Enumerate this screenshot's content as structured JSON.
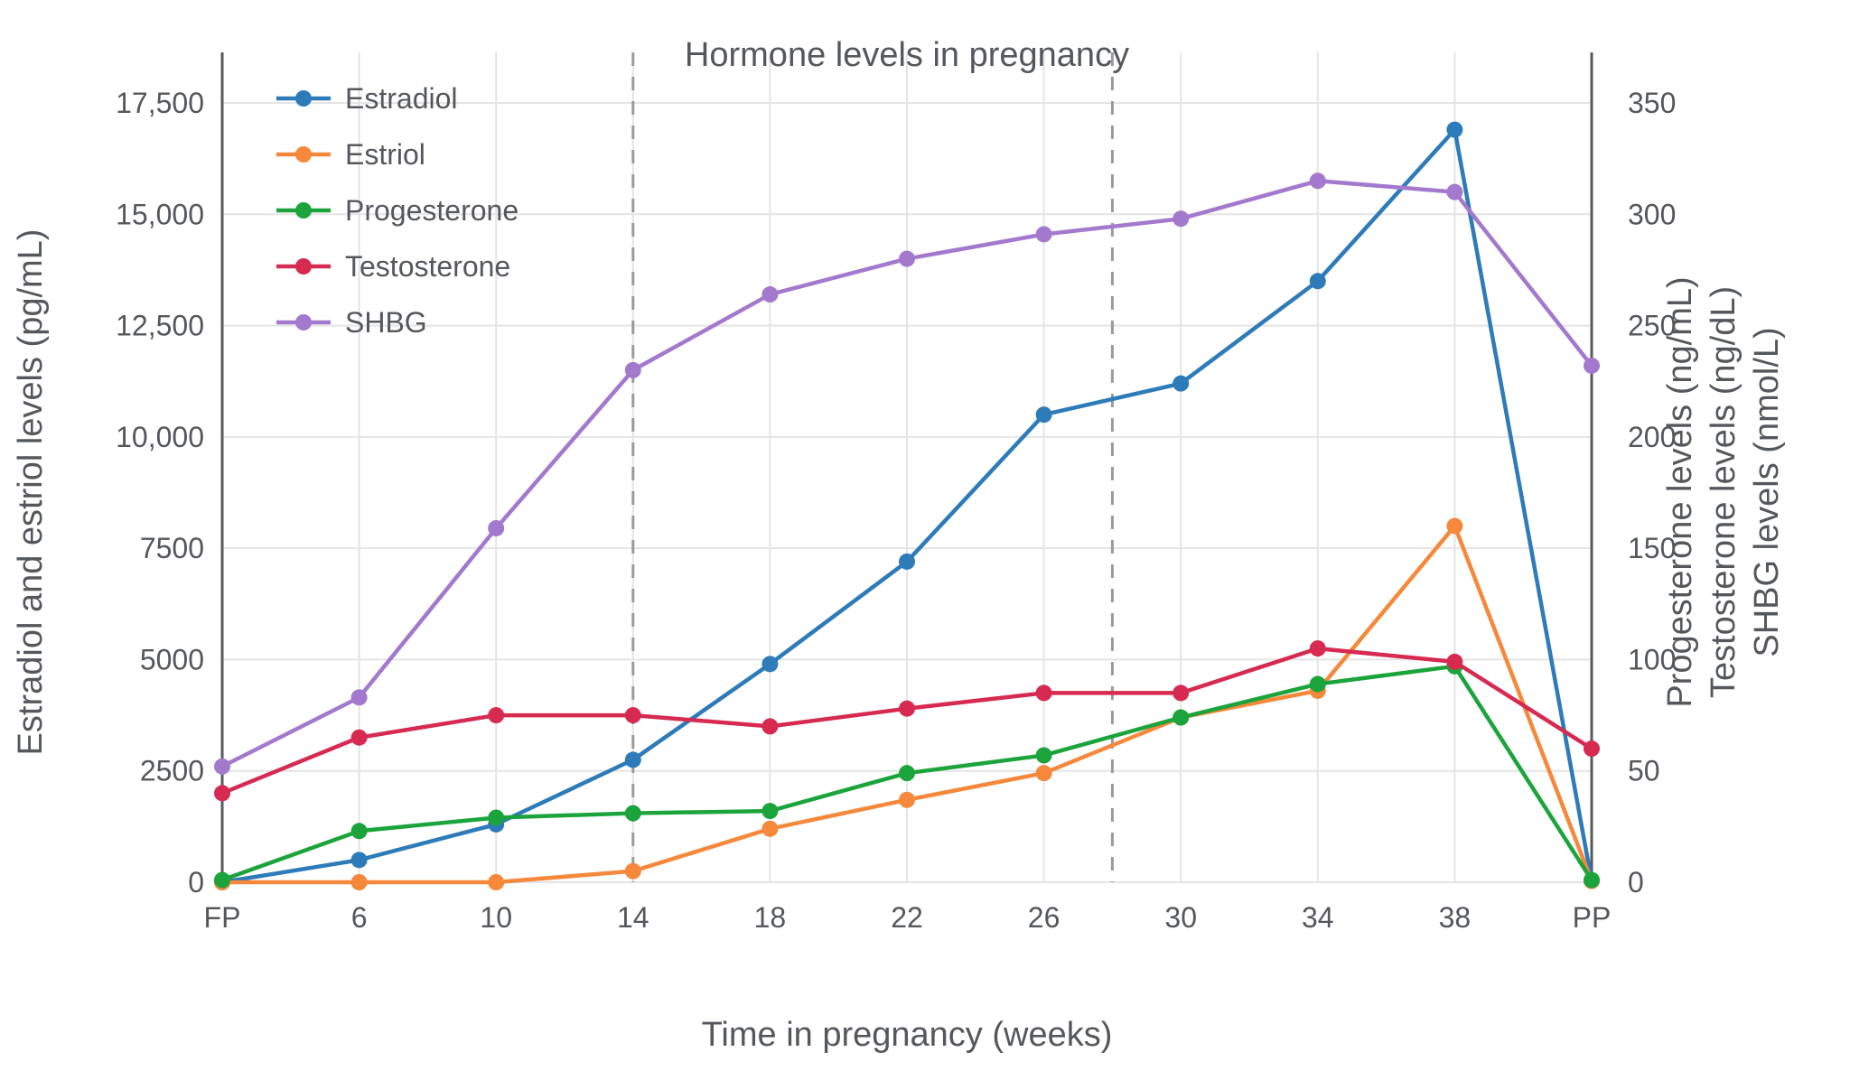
{
  "chart_data": {
    "type": "line",
    "title": "Hormone levels in pregnancy",
    "xlabel": "Time in pregnancy (weeks)",
    "ylabel_left": "Estradiol and estriol levels (pg/mL)",
    "ylabel_right": [
      "Progesterone levels (ng/mL)",
      "Testosterone levels (ng/dL)",
      "SHBG levels (nmol/L)"
    ],
    "categories": [
      "FP",
      "6",
      "10",
      "14",
      "18",
      "22",
      "26",
      "30",
      "34",
      "38",
      "PP"
    ],
    "left_axis": {
      "range": [
        0,
        17500
      ],
      "ticks": [
        0,
        2500,
        5000,
        7500,
        10000,
        12500,
        15000,
        17500
      ],
      "tick_labels": [
        "0",
        "2500",
        "5000",
        "7500",
        "10,000",
        "12,500",
        "15,000",
        "17,500"
      ]
    },
    "right_axis": {
      "range": [
        0,
        350
      ],
      "ticks": [
        0,
        50,
        100,
        150,
        200,
        250,
        300,
        350
      ],
      "tick_labels": [
        "0",
        "50",
        "100",
        "150",
        "200",
        "250",
        "300",
        "350"
      ]
    },
    "series": [
      {
        "name": "Estradiol",
        "axis": "left",
        "color": "#2d7bb8",
        "values": [
          0,
          500,
          1300,
          2750,
          4900,
          7200,
          10500,
          11200,
          13500,
          16900,
          30
        ]
      },
      {
        "name": "Estriol",
        "axis": "left",
        "color": "#f5883a",
        "values": [
          0,
          0,
          0,
          250,
          1200,
          1850,
          2450,
          3700,
          4300,
          8000,
          30
        ]
      },
      {
        "name": "Progesterone",
        "axis": "right",
        "color": "#1ca43c",
        "values": [
          1,
          23,
          29,
          31,
          32,
          49,
          57,
          74,
          89,
          97,
          1
        ]
      },
      {
        "name": "Testosterone",
        "axis": "right",
        "color": "#d62a51",
        "values": [
          40,
          65,
          75,
          75,
          70,
          78,
          85,
          85,
          105,
          99,
          60
        ]
      },
      {
        "name": "SHBG",
        "axis": "right",
        "color": "#a379ce",
        "values": [
          52,
          83,
          159,
          230,
          264,
          280,
          291,
          298,
          315,
          310,
          232
        ]
      }
    ],
    "dashed_vline_indices": [
      3,
      6.5
    ],
    "dashed_vline_weeks": [
      "14",
      "28"
    ],
    "solid_vline_indices": [
      0,
      10
    ],
    "grid": true,
    "legend_position": "top-left",
    "colors": {
      "grid": "#e4e4e4",
      "axis_line": "#5a5a5a",
      "dashed_line": "#9a9a9a",
      "text": "#54575c",
      "background": "#ffffff"
    }
  }
}
